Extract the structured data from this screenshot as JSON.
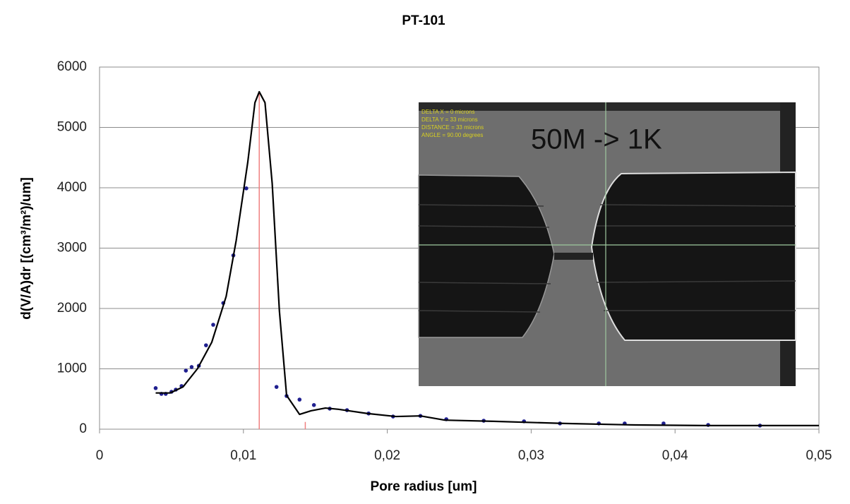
{
  "chart_data": {
    "type": "scatter",
    "title": "PT-101",
    "xlabel": "Pore radius [um]",
    "ylabel": "d(V/A)dr [(cm³/m²)/um]",
    "xlim": [
      0,
      0.05
    ],
    "ylim": [
      0,
      6000
    ],
    "xticks": [
      0,
      {
        "value": 0.01,
        "label": "0,01"
      },
      {
        "value": 0.02,
        "label": "0,02"
      },
      {
        "value": 0.03,
        "label": "0,03"
      },
      {
        "value": 0.04,
        "label": "0,04"
      },
      {
        "value": 0.05,
        "label": "0,05"
      }
    ],
    "yticks": [
      0,
      1000,
      2000,
      3000,
      4000,
      5000,
      6000
    ],
    "grid": true,
    "series": [
      {
        "type": "scatter",
        "color": "#1f1f8f",
        "x": [
          0.0039,
          0.0043,
          0.0046,
          0.005,
          0.0053,
          0.0057,
          0.006,
          0.0064,
          0.0069,
          0.0074,
          0.0079,
          0.0086,
          0.0093,
          0.0102,
          0.0123,
          0.013,
          0.0139,
          0.0149,
          0.016,
          0.0172,
          0.0187,
          0.0204,
          0.0223,
          0.0241,
          0.0267,
          0.0295,
          0.032,
          0.0347,
          0.0365,
          0.0392,
          0.0423,
          0.0459
        ],
        "values": [
          680,
          585,
          585,
          620,
          655,
          715,
          970,
          1030,
          1050,
          1390,
          1730,
          2090,
          2880,
          3990,
          700,
          550,
          490,
          400,
          340,
          315,
          260,
          210,
          220,
          165,
          140,
          130,
          95,
          95,
          95,
          95,
          70,
          60
        ]
      },
      {
        "type": "line",
        "color": "#000000",
        "x": [
          0.0039,
          0.0049,
          0.0058,
          0.0068,
          0.0078,
          0.0088,
          0.0095,
          0.0103,
          0.0108,
          0.0111,
          0.0115,
          0.012,
          0.0125,
          0.013,
          0.0139,
          0.0147,
          0.0157,
          0.0166,
          0.0186,
          0.0206,
          0.0223,
          0.024,
          0.0274,
          0.0323,
          0.0372,
          0.0421,
          0.05
        ],
        "values": [
          600,
          600,
          700,
          1000,
          1440,
          2200,
          3130,
          4420,
          5410,
          5590,
          5410,
          4070,
          1960,
          560,
          245,
          305,
          350,
          330,
          260,
          210,
          220,
          150,
          130,
          95,
          70,
          60,
          60
        ]
      }
    ],
    "vlines": [
      {
        "x": 0.0111,
        "top": 5600,
        "color": "#f08080"
      },
      {
        "x": 0.0143,
        "top": 120,
        "color": "#f08080"
      }
    ]
  },
  "inset": {
    "annotation": "50M -> 1K",
    "readout": [
      "DELTA X   = 0 microns",
      "DELTA Y   = 33 microns",
      "DISTANCE = 33 microns",
      "ANGLE      = 90.00 degrees"
    ]
  }
}
